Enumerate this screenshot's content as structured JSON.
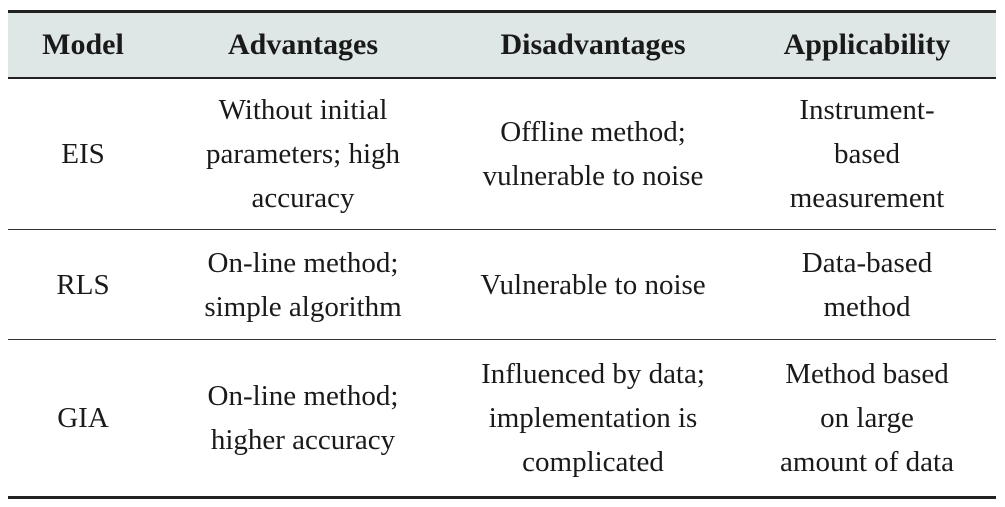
{
  "table": {
    "headers": [
      "Model",
      "Advantages",
      "Disadvantages",
      "Applicability"
    ],
    "rows": [
      {
        "model": "EIS",
        "advantages": "Without initial\nparameters; high\naccuracy",
        "disadvantages": "Offline method;\nvulnerable to noise",
        "applicability": "Instrument-\nbased\nmeasurement"
      },
      {
        "model": "RLS",
        "advantages": "On-line method;\nsimple algorithm",
        "disadvantages": "Vulnerable to noise",
        "applicability": "Data-based\nmethod"
      },
      {
        "model": "GIA",
        "advantages": "On-line method;\nhigher accuracy",
        "disadvantages": "Influenced by data;\nimplementation is\ncomplicated",
        "applicability": "Method based\non large\namount of data"
      }
    ],
    "colors": {
      "header_background": "#dfe7e6",
      "rule": "#222222",
      "text": "#1a1a1a"
    }
  }
}
